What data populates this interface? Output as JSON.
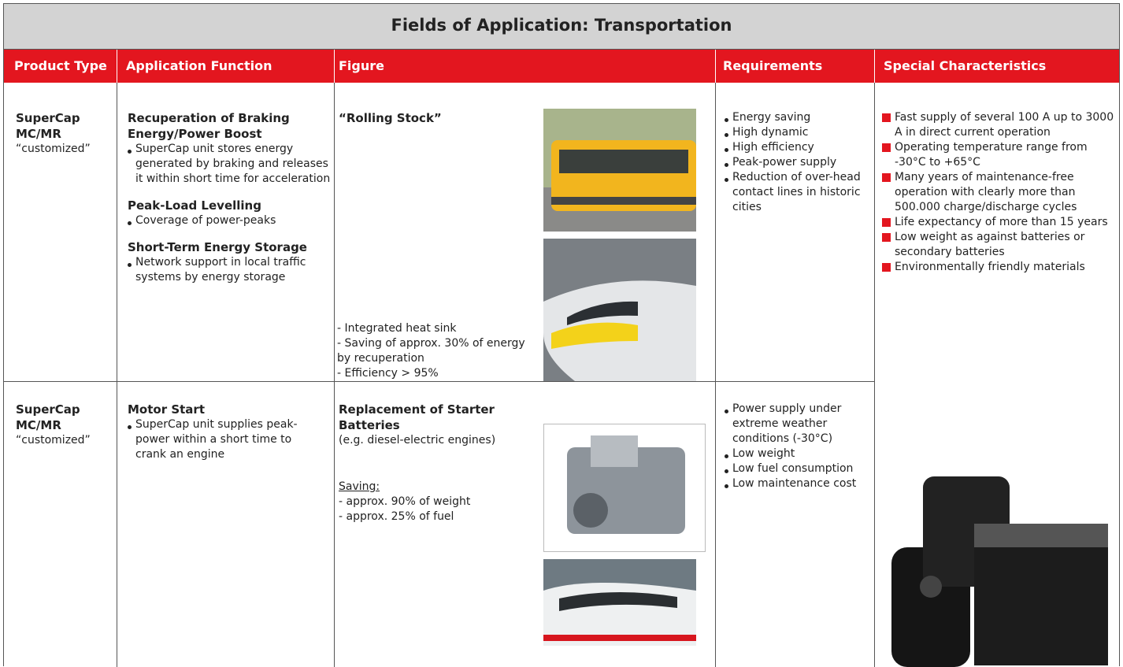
{
  "title": "Fields of Application: Transportation",
  "headers": [
    "Product Type",
    "Application Function",
    "Figure",
    "Requirements",
    "Special Characteristics"
  ],
  "rows": [
    {
      "product": [
        "SuperCap",
        "MC/MR"
      ],
      "product_note": "“customized”",
      "functions": [
        {
          "heading": "Recuperation of Braking Energy/Power Boost",
          "bullets": [
            "SuperCap unit stores energy generated by braking and releases it within short time for acceleration"
          ]
        },
        {
          "heading": "Peak-Load Levelling",
          "bullets": [
            "Coverage of power-peaks"
          ]
        },
        {
          "heading": "Short-Term Energy Storage",
          "bullets": [
            "Network support in local traffic systems by energy storage"
          ]
        }
      ],
      "figure": {
        "heading": "“Rolling Stock”",
        "lines": [
          "- Integrated heat sink",
          "- Saving of approx. 30% of energy by recuperation",
          "- Efficiency > 95%"
        ]
      },
      "requirements": [
        "Energy saving",
        "High dynamic",
        "High efficiency",
        "Peak-power supply",
        "Reduction of over-head contact lines in historic cities"
      ]
    },
    {
      "product": [
        "SuperCap",
        "MC/MR"
      ],
      "product_note": "“customized”",
      "functions": [
        {
          "heading": "Motor Start",
          "bullets": [
            "SuperCap unit supplies peak-power within a short time to crank an engine"
          ]
        }
      ],
      "figure": {
        "heading": "Replacement of Starter Batteries",
        "subheading": "(e.g. diesel-electric engines)",
        "saving_label": "Saving:",
        "lines": [
          "- approx. 90% of weight",
          "- approx. 25% of fuel"
        ]
      },
      "requirements": [
        "Power supply under extreme weather conditions (-30°C)",
        "Low weight",
        "Low fuel consumption",
        "Low maintenance cost"
      ]
    }
  ],
  "special_characteristics": [
    "Fast supply of several 100 A up to 3000 A in direct current operation",
    "Operating temperature range from -30°C to +65°C",
    "Many years of maintenance-free operation with clearly more than 500.000 charge/discharge cycles",
    "Life expectancy of more than 15 years",
    "Low weight as against batteries or secondary batteries",
    "Environmentally friendly materials"
  ]
}
